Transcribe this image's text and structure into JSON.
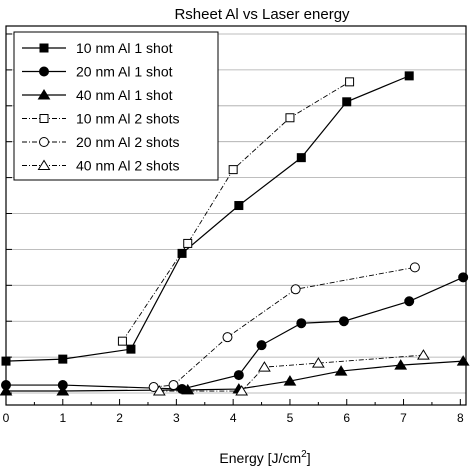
{
  "chart_data": {
    "type": "line",
    "title": "Rsheet Al vs Laser energy",
    "xlabel": "Energy [J/cm",
    "xlabel_superscript": "2",
    "xlabel_suffix": "]",
    "ylabel": "",
    "xlim": [
      0,
      8.1
    ],
    "ylim": [
      -0.3,
      9.2
    ],
    "x_ticks": [
      0,
      1,
      2,
      3,
      4,
      5,
      6,
      7,
      8
    ],
    "x_tick_labels": [
      "0",
      "1",
      "2",
      "3",
      "4",
      "5",
      "6",
      "7",
      "8"
    ],
    "y_ticks": [
      0,
      0.9,
      1.8,
      2.7,
      3.6,
      4.5,
      5.4,
      6.3,
      7.2,
      8.1,
      9.0
    ],
    "grid": "horizontal",
    "legend_position": "top-left",
    "series": [
      {
        "name": "10 nm Al 1 shot",
        "marker": "square",
        "filled": true,
        "dash": "solid",
        "x": [
          0,
          1.0,
          2.2,
          3.1,
          4.1,
          5.2,
          6.0,
          7.1
        ],
        "y": [
          0.8,
          0.85,
          1.1,
          3.5,
          4.7,
          5.9,
          7.3,
          7.95
        ]
      },
      {
        "name": "20 nm Al 1 shot",
        "marker": "circle",
        "filled": true,
        "dash": "solid",
        "x": [
          0,
          1.0,
          3.1,
          4.1,
          4.5,
          5.2,
          5.95,
          7.1,
          8.05
        ],
        "y": [
          0.2,
          0.2,
          0.1,
          0.45,
          1.2,
          1.75,
          1.8,
          2.3,
          2.9
        ]
      },
      {
        "name": "40 nm Al 1 shot",
        "marker": "triangle",
        "filled": true,
        "dash": "solid",
        "x": [
          0,
          1.0,
          3.2,
          4.1,
          5.0,
          5.9,
          6.95,
          8.05
        ],
        "y": [
          0.05,
          0.05,
          0.08,
          0.1,
          0.3,
          0.55,
          0.7,
          0.8
        ]
      },
      {
        "name": "10 nm Al 2 shots",
        "marker": "square",
        "filled": false,
        "dash": "dashdot",
        "x": [
          2.05,
          3.2,
          4.0,
          5.0,
          6.05
        ],
        "y": [
          1.3,
          3.75,
          5.6,
          6.9,
          7.8
        ]
      },
      {
        "name": "20 nm Al 2 shots",
        "marker": "circle",
        "filled": false,
        "dash": "dashdot",
        "x": [
          2.6,
          2.95,
          3.9,
          5.1,
          7.2
        ],
        "y": [
          0.15,
          0.2,
          1.4,
          2.6,
          3.15
        ]
      },
      {
        "name": "40 nm Al 2 shots",
        "marker": "triangle",
        "filled": false,
        "dash": "dashdot",
        "x": [
          2.7,
          4.15,
          4.55,
          5.5,
          7.35
        ],
        "y": [
          0.05,
          0.05,
          0.65,
          0.75,
          0.95
        ]
      }
    ]
  }
}
